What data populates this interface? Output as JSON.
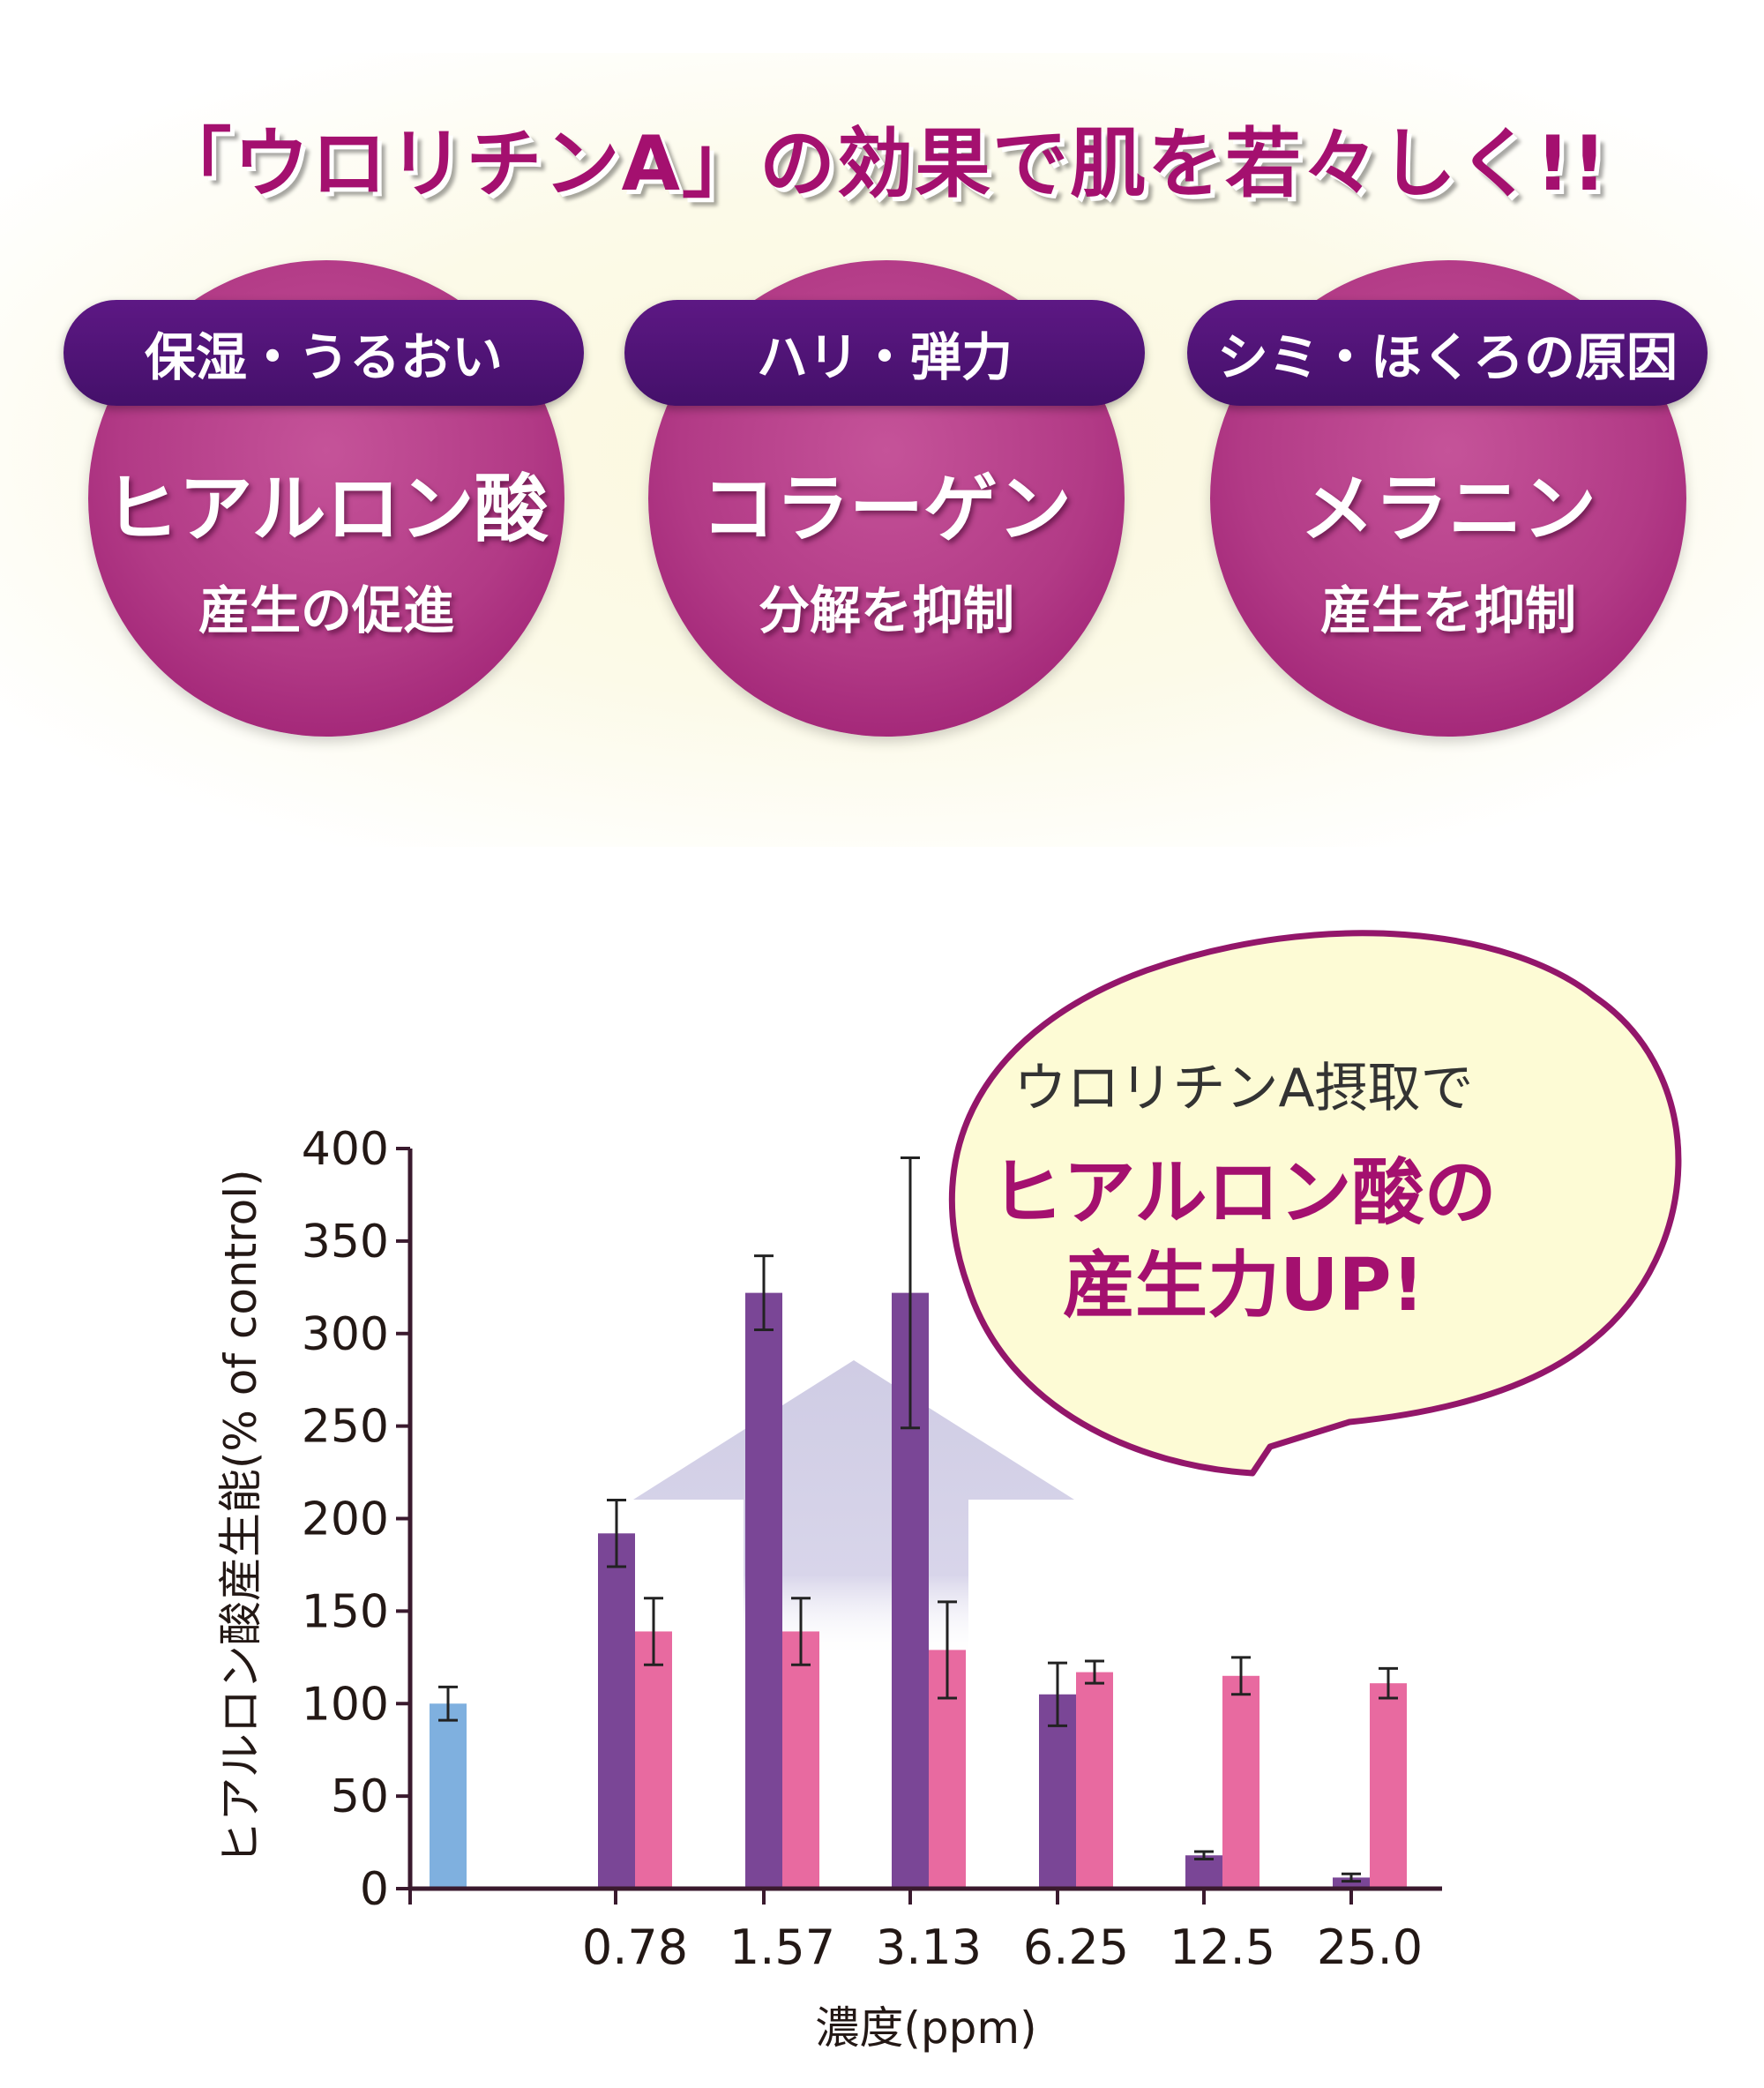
{
  "headline": "「ウロリチンA」の効果で肌を若々しく!!",
  "cards": [
    {
      "tag": "保湿・うるおい",
      "main": "ヒアルロン酸",
      "sub": "産生の促進"
    },
    {
      "tag": "ハリ・弾力",
      "main": "コラーゲン",
      "sub": "分解を抑制"
    },
    {
      "tag": "シミ・ほくろの原因",
      "main": "メラニン",
      "sub": "産生を抑制"
    }
  ],
  "bubble": {
    "line1": "ウロリチンA摂取で",
    "line2": "ヒアルロン酸の",
    "line3": "産生力UP!"
  },
  "colors": {
    "accent": "#a4106f",
    "pill": "#4f1476",
    "control_bar": "#7fb0df",
    "series_a": "#7a4696",
    "series_b": "#e86aa0",
    "arrow": "#cfcce4"
  },
  "chart_data": {
    "type": "bar",
    "ylabel": "ヒアルロン酸産生能(% of control)",
    "xlabel": "濃度(ppm)",
    "ylim": [
      0,
      400
    ],
    "yticks": [
      "0",
      "50",
      "100",
      "150",
      "200",
      "250",
      "300",
      "350",
      "400"
    ],
    "categories": [
      "",
      "0.78",
      "1.57",
      "3.13",
      "6.25",
      "12.5",
      "25.0"
    ],
    "series": [
      {
        "values": [
          100,
          null,
          null,
          null,
          null,
          null,
          null
        ],
        "errors": [
          9,
          null,
          null,
          null,
          null,
          null,
          null
        ]
      },
      {
        "values": [
          null,
          192,
          322,
          322,
          105,
          18,
          6
        ],
        "errors": [
          null,
          18,
          20,
          73,
          17,
          2,
          2
        ]
      },
      {
        "values": [
          null,
          139,
          139,
          129,
          117,
          115,
          111
        ],
        "errors": [
          null,
          18,
          18,
          26,
          6,
          10,
          8
        ]
      }
    ],
    "grid": false,
    "legend": "none"
  }
}
